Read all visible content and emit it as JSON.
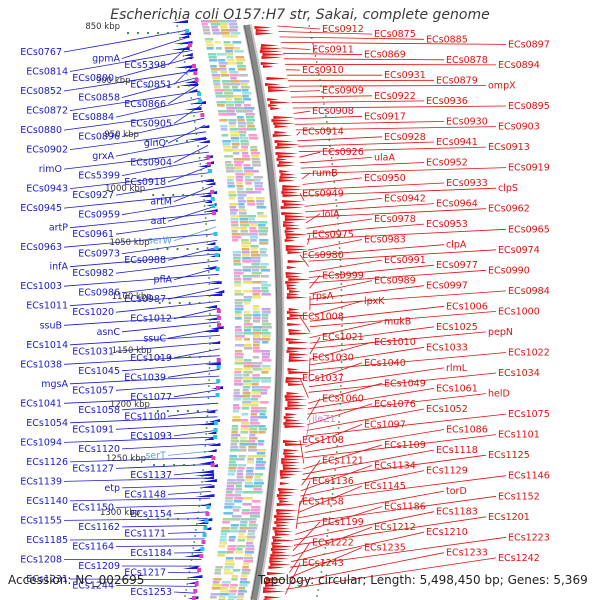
{
  "title": "Escherichia coli O157:H7 str. Sakai, complete genome",
  "footer": {
    "accession_label": "Accession:",
    "accession": "NC_002695",
    "topology_label": "Topology:",
    "topology": "circular",
    "length_label": "Length:",
    "length": "5,498,450 bp",
    "genes_label": "Genes:",
    "genes": "5,369"
  },
  "colors": {
    "left_labels": "#1a1ad0",
    "right_labels": "#e01010",
    "special_labels": "#5aa0e6",
    "pink_labels": "#d080d0",
    "backbone": "#888888",
    "tick_dots": "#2e8b2e"
  },
  "ticks": [
    "850 kbp",
    "900 kbp",
    "950 kbp",
    "1000 kbp",
    "1050 kbp",
    "1100 kbp",
    "1150 kbp",
    "1200 kbp",
    "1250 kbp",
    "1300 kbp"
  ],
  "left_labels": [
    {
      "t": "ECs0767"
    },
    {
      "t": "gpmA"
    },
    {
      "t": "ECs5398"
    },
    {
      "t": "ECs0814"
    },
    {
      "t": "ECs0800"
    },
    {
      "t": "ECs0851"
    },
    {
      "t": "ECs0852"
    },
    {
      "t": "ECs0858"
    },
    {
      "t": "ECs0866"
    },
    {
      "t": "ECs0872"
    },
    {
      "t": "ECs0884"
    },
    {
      "t": "ECs0905"
    },
    {
      "t": "ECs0880"
    },
    {
      "t": "ECs0896"
    },
    {
      "t": "glnQ"
    },
    {
      "t": "ECs0902"
    },
    {
      "t": "grxA"
    },
    {
      "t": "ECs0904"
    },
    {
      "t": "rimO"
    },
    {
      "t": "ECs5399"
    },
    {
      "t": "ECs0918"
    },
    {
      "t": "ECs0943"
    },
    {
      "t": "ECs0927"
    },
    {
      "t": "artM"
    },
    {
      "t": "ECs0945"
    },
    {
      "t": "ECs0959"
    },
    {
      "t": "aat"
    },
    {
      "t": "artP"
    },
    {
      "t": "ECs0961"
    },
    {
      "t": "serW",
      "s": 1
    },
    {
      "t": "ECs0963"
    },
    {
      "t": "ECs0973"
    },
    {
      "t": "ECs0988"
    },
    {
      "t": "infA"
    },
    {
      "t": "ECs0982"
    },
    {
      "t": "pflA"
    },
    {
      "t": "ECs1003"
    },
    {
      "t": "ECs0986"
    },
    {
      "t": "ECs0987"
    },
    {
      "t": "ECs1011"
    },
    {
      "t": "ECs1020"
    },
    {
      "t": "ECs1012"
    },
    {
      "t": "ssuB"
    },
    {
      "t": "asnC"
    },
    {
      "t": "ssuC"
    },
    {
      "t": "ECs1014"
    },
    {
      "t": "ECs1031"
    },
    {
      "t": "ECs1019"
    },
    {
      "t": "ECs1038"
    },
    {
      "t": "ECs1045"
    },
    {
      "t": "ECs1039"
    },
    {
      "t": "mgsA"
    },
    {
      "t": "ECs1057"
    },
    {
      "t": "ECs1077"
    },
    {
      "t": "ECs1041"
    },
    {
      "t": "ECs1058"
    },
    {
      "t": "ECs1100"
    },
    {
      "t": "ECs1054"
    },
    {
      "t": "ECs1091"
    },
    {
      "t": "ECs1093"
    },
    {
      "t": "ECs1094"
    },
    {
      "t": "ECs1120"
    },
    {
      "t": "serT",
      "s": 1
    },
    {
      "t": "ECs1126"
    },
    {
      "t": "ECs1127"
    },
    {
      "t": "ECs1137"
    },
    {
      "t": "ECs1139"
    },
    {
      "t": "etp"
    },
    {
      "t": "ECs1148"
    },
    {
      "t": "ECs1140"
    },
    {
      "t": "ECs1150"
    },
    {
      "t": "ECs1154"
    },
    {
      "t": "ECs1155"
    },
    {
      "t": "ECs1162"
    },
    {
      "t": "ECs1171"
    },
    {
      "t": "ECs1185"
    },
    {
      "t": "ECs1164"
    },
    {
      "t": "ECs1184"
    },
    {
      "t": "ECs1208"
    },
    {
      "t": "ECs1209"
    },
    {
      "t": "ECs1217"
    },
    {
      "t": "ECs1231"
    },
    {
      "t": "ECs1244"
    },
    {
      "t": "ECs1253"
    }
  ],
  "right_labels": [
    {
      "t": "ECs0912"
    },
    {
      "t": "ECs0875"
    },
    {
      "t": "ECs0885"
    },
    {
      "t": "ECs0897"
    },
    {
      "t": "ECs0911"
    },
    {
      "t": "ECs0869"
    },
    {
      "t": "ECs0878"
    },
    {
      "t": "ECs0894"
    },
    {
      "t": "ECs0910"
    },
    {
      "t": "ECs0931"
    },
    {
      "t": "ECs0879"
    },
    {
      "t": "ompX"
    },
    {
      "t": "ECs0909"
    },
    {
      "t": "ECs0922"
    },
    {
      "t": "ECs0936"
    },
    {
      "t": "ECs0895"
    },
    {
      "t": "ECs0908"
    },
    {
      "t": "ECs0917"
    },
    {
      "t": "ECs0930"
    },
    {
      "t": "ECs0903"
    },
    {
      "t": "ECs0914"
    },
    {
      "t": "ECs0928"
    },
    {
      "t": "ECs0941"
    },
    {
      "t": "ECs0913"
    },
    {
      "t": "ECs0926"
    },
    {
      "t": "ulaA"
    },
    {
      "t": "ECs0952"
    },
    {
      "t": "ECs0919"
    },
    {
      "t": "rumB"
    },
    {
      "t": "ECs0950"
    },
    {
      "t": "ECs0933"
    },
    {
      "t": "clpS"
    },
    {
      "t": "ECs0949"
    },
    {
      "t": "ECs0942"
    },
    {
      "t": "ECs0964"
    },
    {
      "t": "ECs0962"
    },
    {
      "t": "lolA"
    },
    {
      "t": "ECs0978"
    },
    {
      "t": "ECs0953"
    },
    {
      "t": "ECs0965"
    },
    {
      "t": "ECs0975"
    },
    {
      "t": "ECs0983"
    },
    {
      "t": "clpA"
    },
    {
      "t": "ECs0974"
    },
    {
      "t": "ECs0980"
    },
    {
      "t": "ECs0991"
    },
    {
      "t": "ECs0977"
    },
    {
      "t": "ECs0990"
    },
    {
      "t": "ECs0999"
    },
    {
      "t": "ECs0989"
    },
    {
      "t": "ECs0997"
    },
    {
      "t": "ECs0984"
    },
    {
      "t": "rpsA"
    },
    {
      "t": "lpxK"
    },
    {
      "t": "ECs1006"
    },
    {
      "t": "ECs1000"
    },
    {
      "t": "ECs1008"
    },
    {
      "t": "mukB"
    },
    {
      "t": "ECs1025"
    },
    {
      "t": "pepN"
    },
    {
      "t": "ECs1021"
    },
    {
      "t": "ECs1010"
    },
    {
      "t": "ECs1033"
    },
    {
      "t": "ECs1022"
    },
    {
      "t": "ECs1030"
    },
    {
      "t": "ECs1040"
    },
    {
      "t": "rlmL"
    },
    {
      "t": "ECs1034"
    },
    {
      "t": "ECs1037"
    },
    {
      "t": "ECs1049"
    },
    {
      "t": "ECs1061"
    },
    {
      "t": "helD"
    },
    {
      "t": "ECs1060"
    },
    {
      "t": "ECs1076"
    },
    {
      "t": "ECs1052"
    },
    {
      "t": "ECs1075"
    },
    {
      "t": "ileZ1",
      "p": 1
    },
    {
      "t": "ECs1097"
    },
    {
      "t": "ECs1086"
    },
    {
      "t": "ECs1101"
    },
    {
      "t": "ECs1108"
    },
    {
      "t": "ECs1109"
    },
    {
      "t": "ECs1118"
    },
    {
      "t": "ECs1125"
    },
    {
      "t": "ECs1121"
    },
    {
      "t": "ECs1134"
    },
    {
      "t": "ECs1129"
    },
    {
      "t": "ECs1146"
    },
    {
      "t": "ECs1136"
    },
    {
      "t": "ECs1145"
    },
    {
      "t": "torD"
    },
    {
      "t": "ECs1152"
    },
    {
      "t": "ECs1158"
    },
    {
      "t": "ECs1186"
    },
    {
      "t": "ECs1183"
    },
    {
      "t": "ECs1201"
    },
    {
      "t": "ECs1199"
    },
    {
      "t": "ECs1212"
    },
    {
      "t": "ECs1210"
    },
    {
      "t": "ECs1223"
    },
    {
      "t": "ECs1222"
    },
    {
      "t": "ECs1235"
    },
    {
      "t": "ECs1233"
    },
    {
      "t": "ECs1242"
    },
    {
      "t": "ECs1243"
    }
  ]
}
